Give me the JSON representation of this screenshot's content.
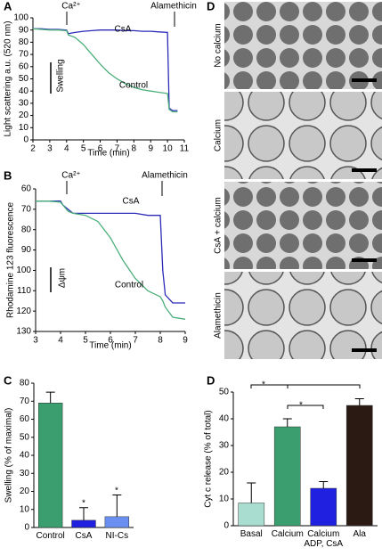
{
  "chart_data": [
    {
      "type": "line",
      "label": "A",
      "y_label": "Light scattering a.u. (520 nm)",
      "x_label": "Time (min)",
      "x": [
        2,
        2.5,
        3,
        3.5,
        4,
        4.1,
        4.5,
        5,
        5.5,
        6,
        6.5,
        7,
        7.5,
        8,
        8.5,
        9,
        9.5,
        10,
        10.1,
        10.3,
        10.6
      ],
      "series": [
        {
          "name": "CsA",
          "color": "#2b2bb8",
          "values": [
            91,
            91,
            90.5,
            90.5,
            90,
            87,
            88,
            89,
            89.5,
            90,
            90,
            90,
            89.5,
            89.5,
            89,
            89,
            88.5,
            88,
            26,
            24,
            24
          ]
        },
        {
          "name": "Control",
          "color": "#4caf7a",
          "values": [
            91,
            90.5,
            90,
            90,
            89.5,
            86,
            84,
            78,
            70,
            62,
            55,
            50,
            46,
            43,
            41,
            40,
            39,
            38,
            25,
            23,
            23
          ]
        }
      ],
      "xlim": [
        2,
        11
      ],
      "xticks": [
        2,
        3,
        4,
        5,
        6,
        7,
        8,
        9,
        10,
        11
      ],
      "ylim": [
        0,
        100
      ],
      "yticks": [
        0,
        10,
        20,
        30,
        40,
        50,
        60,
        70,
        80,
        90,
        100
      ],
      "y_inverted": false,
      "annotations": [
        "Ca²⁺",
        "Alamethicin",
        "Swelling"
      ]
    },
    {
      "type": "line",
      "label": "B",
      "y_label": "Rhodamine 123 fluorescence",
      "x_label": "Time (min)",
      "x": [
        3,
        3.5,
        4,
        4.1,
        4.3,
        4.5,
        5,
        5.5,
        6,
        6.5,
        7,
        7.5,
        8,
        8.1,
        8.2,
        8.5,
        9
      ],
      "series": [
        {
          "name": "CsA",
          "color": "#2b2bb8",
          "values": [
            66,
            66,
            66,
            68,
            70,
            72,
            72,
            72,
            72,
            72,
            72,
            73,
            73,
            100,
            112,
            116,
            116
          ]
        },
        {
          "name": "Control",
          "color": "#4caf7a",
          "values": [
            66,
            66,
            66.5,
            68,
            71,
            72,
            73,
            76,
            84,
            95,
            104,
            110,
            113,
            115,
            118,
            123,
            124
          ]
        }
      ],
      "xlim": [
        3,
        9
      ],
      "xticks": [
        3,
        4,
        5,
        6,
        7,
        8,
        9
      ],
      "ylim": [
        60,
        130
      ],
      "yticks": [
        60,
        70,
        80,
        90,
        100,
        110,
        120,
        130
      ],
      "y_inverted": true,
      "annotations": [
        "Ca²⁺",
        "Alamethicin",
        "Δψm"
      ]
    },
    {
      "type": "bar",
      "label": "C",
      "y_label": "Swelling (% of maximal)",
      "categories": [
        "Control",
        "CsA",
        "NI-Cs"
      ],
      "values": [
        69,
        4,
        6
      ],
      "errors": [
        6,
        7,
        12
      ],
      "colors": [
        "#3a9e6e",
        "#2020e0",
        "#6a8ff0"
      ],
      "ylim": [
        0,
        80
      ],
      "yticks": [
        0,
        10,
        20,
        30,
        40,
        50,
        60,
        70,
        80
      ],
      "y_inverted": false,
      "annotations": [
        "*",
        "*"
      ]
    },
    {
      "type": "bar",
      "label": "D",
      "y_label": "Cyt c release (% of total)",
      "categories": [
        "Basal",
        "Calcium",
        "Calcium ADP, CsA",
        "Ala"
      ],
      "values": [
        8.5,
        37,
        14,
        45
      ],
      "errors": [
        7.5,
        3,
        2.5,
        2.5
      ],
      "colors": [
        "#a8ddd0",
        "#3a9e6e",
        "#2020e0",
        "#2b1a14"
      ],
      "ylim": [
        0,
        50
      ],
      "yticks": [
        0,
        10,
        20,
        30,
        40,
        50
      ],
      "y_inverted": false,
      "annotations": [
        "*",
        "*"
      ]
    }
  ],
  "micrographs": {
    "label": "D",
    "panels": [
      "No calcium",
      "Calcium",
      "CsA + calcium",
      "Alamethicin"
    ]
  }
}
